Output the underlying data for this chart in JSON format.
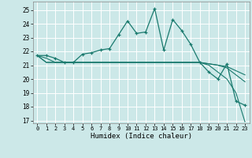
{
  "xlabel": "Humidex (Indice chaleur)",
  "xlim": [
    -0.5,
    23.5
  ],
  "ylim": [
    16.8,
    25.6
  ],
  "yticks": [
    17,
    18,
    19,
    20,
    21,
    22,
    23,
    24,
    25
  ],
  "xticks": [
    0,
    1,
    2,
    3,
    4,
    5,
    6,
    7,
    8,
    9,
    10,
    11,
    12,
    13,
    14,
    15,
    16,
    17,
    18,
    19,
    20,
    21,
    22,
    23
  ],
  "background_color": "#cce8e8",
  "grid_color": "#b0d8d8",
  "line_color": "#1a7a6e",
  "line1": {
    "x": [
      0,
      1,
      2,
      3,
      4,
      5,
      6,
      7,
      8,
      9,
      10,
      11,
      12,
      13,
      14,
      15,
      16,
      17,
      18,
      19,
      20,
      21,
      22,
      23
    ],
    "y": [
      21.7,
      21.7,
      21.5,
      21.2,
      21.2,
      21.8,
      21.9,
      22.1,
      22.2,
      23.2,
      24.2,
      23.3,
      23.4,
      25.1,
      22.1,
      24.3,
      23.5,
      22.5,
      21.2,
      20.5,
      20.0,
      21.1,
      18.4,
      18.1
    ]
  },
  "line2": {
    "x": [
      0,
      1,
      2,
      3,
      4,
      5,
      6,
      7,
      8,
      9,
      10,
      11,
      12,
      13,
      14,
      15,
      16,
      17,
      18,
      19,
      20,
      21,
      22,
      23
    ],
    "y": [
      21.7,
      21.5,
      21.2,
      21.2,
      21.2,
      21.2,
      21.2,
      21.2,
      21.2,
      21.2,
      21.2,
      21.2,
      21.2,
      21.2,
      21.2,
      21.2,
      21.2,
      21.2,
      21.2,
      21.1,
      21.0,
      20.9,
      20.6,
      20.3
    ]
  },
  "line3": {
    "x": [
      0,
      1,
      2,
      3,
      4,
      5,
      6,
      7,
      8,
      9,
      10,
      11,
      12,
      13,
      14,
      15,
      16,
      17,
      18,
      19,
      20,
      21,
      22,
      23
    ],
    "y": [
      21.7,
      21.2,
      21.2,
      21.2,
      21.2,
      21.2,
      21.2,
      21.2,
      21.2,
      21.2,
      21.2,
      21.2,
      21.2,
      21.2,
      21.2,
      21.2,
      21.2,
      21.2,
      21.2,
      21.1,
      21.0,
      20.8,
      20.3,
      19.8
    ]
  },
  "line4": {
    "x": [
      0,
      1,
      2,
      3,
      4,
      5,
      6,
      7,
      8,
      9,
      10,
      11,
      12,
      13,
      14,
      15,
      16,
      17,
      18,
      19,
      20,
      21,
      22,
      23
    ],
    "y": [
      21.7,
      21.2,
      21.2,
      21.2,
      21.2,
      21.2,
      21.2,
      21.2,
      21.2,
      21.2,
      21.2,
      21.2,
      21.2,
      21.2,
      21.2,
      21.2,
      21.2,
      21.2,
      21.2,
      21.0,
      20.5,
      20.0,
      19.0,
      16.9
    ]
  }
}
